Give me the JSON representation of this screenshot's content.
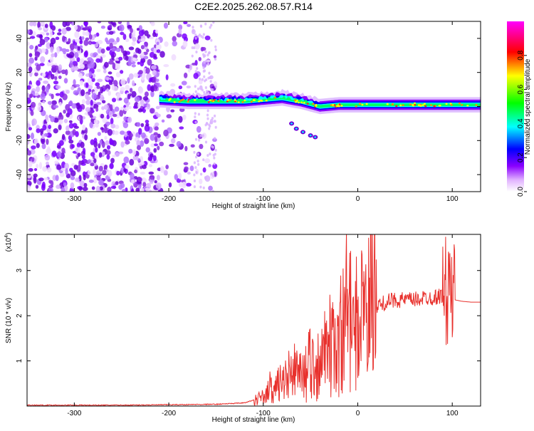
{
  "title": "C2E2.2025.262.08.57.R14",
  "chart_data": [
    {
      "type": "heatmap",
      "xlabel": "Height of straight line (km)",
      "ylabel": "Frequency (Hz)",
      "xlim": [
        -350,
        130
      ],
      "ylim": [
        -50,
        50
      ],
      "xticks": [
        -300,
        -200,
        -100,
        0,
        100
      ],
      "yticks": [
        -40,
        -20,
        0,
        20,
        40
      ],
      "colorbar": {
        "label": "Normalized spectral amplitude",
        "range": [
          0.0,
          1.0
        ],
        "ticks": [
          "0.0",
          "0.2",
          "0.4",
          "0.6",
          "0.8"
        ],
        "colormap": [
          "#ffffff",
          "#8a00ff",
          "#0000ff",
          "#00ffff",
          "#00ff00",
          "#ffff00",
          "#ff0000",
          "#ff00ff"
        ]
      },
      "signal_band_center_hz": [
        {
          "x": -210,
          "y": 4
        },
        {
          "x": -180,
          "y": 3
        },
        {
          "x": -150,
          "y": 3
        },
        {
          "x": -120,
          "y": 3
        },
        {
          "x": -100,
          "y": 4
        },
        {
          "x": -80,
          "y": 5
        },
        {
          "x": -60,
          "y": 3
        },
        {
          "x": -40,
          "y": 0
        },
        {
          "x": -20,
          "y": 1
        },
        {
          "x": 0,
          "y": 1
        },
        {
          "x": 50,
          "y": 1
        },
        {
          "x": 100,
          "y": 1
        },
        {
          "x": 130,
          "y": 1
        }
      ],
      "noise_region_x": [
        -350,
        -150
      ]
    },
    {
      "type": "line",
      "xlabel": "Height of straight line (km)",
      "ylabel": "SNR (10 * v/v)",
      "y_multiplier": "(x10^4)",
      "xlim": [
        -350,
        130
      ],
      "ylim": [
        0,
        3.8
      ],
      "xticks": [
        -300,
        -200,
        -100,
        0,
        100
      ],
      "yticks": [
        1,
        2,
        3
      ],
      "series": [
        {
          "color": "#e8302c",
          "x": [
            -350,
            -300,
            -250,
            -200,
            -150,
            -120,
            -100,
            -90,
            -80,
            -70,
            -60,
            -50,
            -40,
            -30,
            -20,
            -10,
            0,
            10,
            20,
            30,
            40,
            50,
            60,
            70,
            80,
            90,
            95,
            100,
            103,
            110,
            120,
            130
          ],
          "y": [
            0.02,
            0.02,
            0.02,
            0.03,
            0.04,
            0.07,
            0.2,
            0.4,
            0.5,
            0.6,
            0.7,
            0.8,
            0.9,
            1.1,
            1.6,
            1.8,
            1.9,
            2.1,
            2.2,
            2.3,
            2.35,
            2.35,
            2.35,
            2.4,
            2.4,
            2.45,
            2.5,
            2.5,
            2.35,
            2.32,
            2.3,
            2.3
          ]
        }
      ]
    }
  ]
}
